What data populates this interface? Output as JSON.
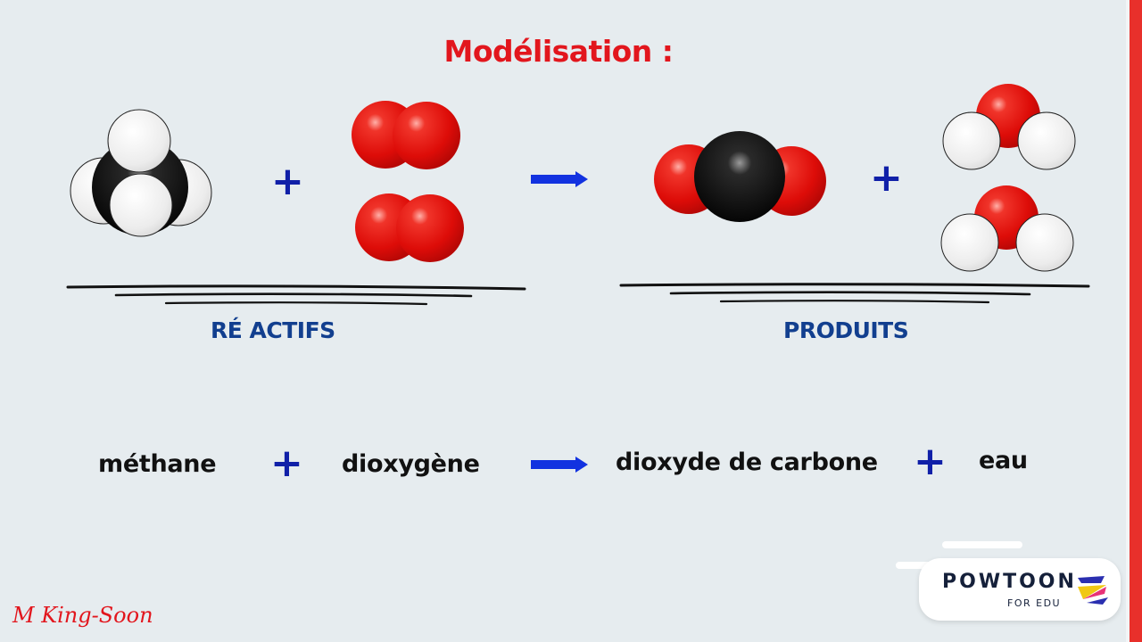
{
  "title": "Modélisation :",
  "reactants": {
    "label": "RÉ ACTIFS",
    "plus": "+"
  },
  "products": {
    "label": "PRODUITS",
    "plus": "+"
  },
  "equation": {
    "methane": "méthane",
    "plus1": "+",
    "dioxygen": "dioxygène",
    "co2": "dioxyde de carbone",
    "plus2": "+",
    "water": "eau"
  },
  "colors": {
    "title": "#e2161d",
    "labels": "#123f8f",
    "plus": "#1020a8",
    "arrow": "#1232e0",
    "oxygen": "#e0100c",
    "carbon": "#111111",
    "hydrogen": "#ececec"
  },
  "signature": "M King-Soon",
  "badge": {
    "name": "POWTOON",
    "sub": "FOR EDU"
  }
}
